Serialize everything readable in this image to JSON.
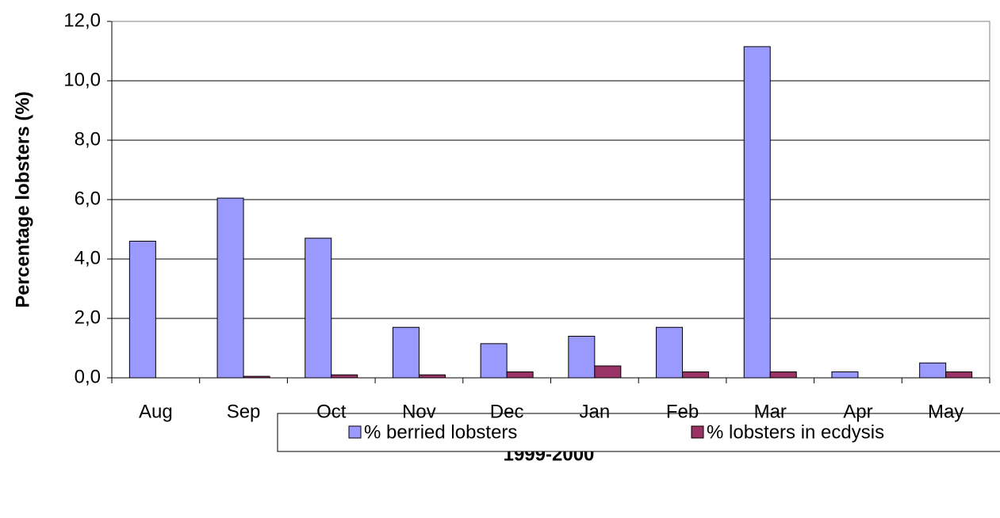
{
  "chart_data": {
    "type": "bar",
    "x_label": "1999-2000",
    "y_label": "Percentage lobsters (%)",
    "categories": [
      "Aug",
      "Sep",
      "Oct",
      "Nov",
      "Dec",
      "Jan",
      "Feb",
      "Mar",
      "Apr",
      "May"
    ],
    "series": [
      {
        "name": "% berried lobsters",
        "color": "#9999ff",
        "values": [
          4.6,
          6.05,
          4.7,
          1.7,
          1.15,
          1.4,
          1.7,
          11.15,
          0.2,
          0.5
        ]
      },
      {
        "name": "% lobsters in ecdysis",
        "color": "#993366",
        "values": [
          0,
          0.05,
          0.1,
          0.1,
          0.2,
          0.4,
          0.2,
          0.2,
          0,
          0.2
        ]
      }
    ],
    "ylim": [
      0,
      12
    ],
    "yticks": [
      {
        "value": 0,
        "label": "0,0"
      },
      {
        "value": 2,
        "label": "2,0"
      },
      {
        "value": 4,
        "label": "4,0"
      },
      {
        "value": 6,
        "label": "6,0"
      },
      {
        "value": 8,
        "label": "8,0"
      },
      {
        "value": 10,
        "label": "10,0"
      },
      {
        "value": 12,
        "label": "12,0"
      }
    ],
    "grid": true,
    "legend": "bottom"
  }
}
